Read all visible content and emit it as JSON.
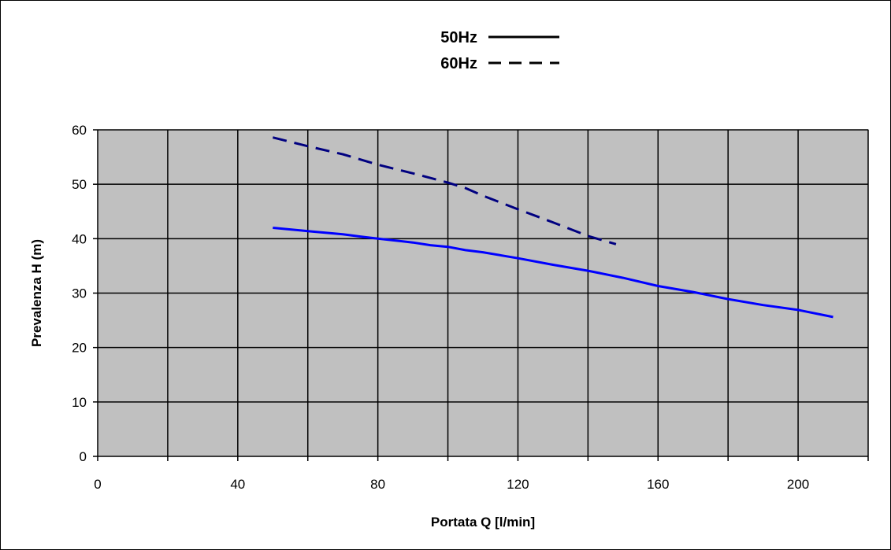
{
  "chart_data": {
    "type": "line",
    "xlabel": "Portata Q [l/min]",
    "ylabel": "Prevalenza H (m)",
    "xlim": [
      0,
      220
    ],
    "ylim": [
      0,
      60
    ],
    "x_ticks": [
      0,
      40,
      80,
      120,
      160,
      200
    ],
    "y_ticks": [
      0,
      10,
      20,
      30,
      40,
      50,
      60
    ],
    "grid": true,
    "plot_background": "#c0c0c0",
    "legend_position": "top-center",
    "series": [
      {
        "name": "50Hz",
        "style": "solid",
        "color": "#0000ff",
        "legend_color": "#000000",
        "x": [
          50,
          60,
          70,
          75,
          80,
          90,
          95,
          100,
          105,
          110,
          120,
          130,
          140,
          150,
          160,
          170,
          180,
          190,
          200,
          210
        ],
        "y": [
          42,
          41.4,
          40.8,
          40.4,
          40,
          39.3,
          38.8,
          38.5,
          37.9,
          37.5,
          36.4,
          35.2,
          34.1,
          32.8,
          31.3,
          30.2,
          28.9,
          27.8,
          26.9,
          25.6
        ]
      },
      {
        "name": "60Hz",
        "style": "dashed",
        "color": "#000080",
        "legend_color": "#000000",
        "x": [
          50,
          60,
          70,
          80,
          90,
          100,
          105,
          110,
          120,
          130,
          140,
          148
        ],
        "y": [
          58.6,
          57,
          55.5,
          53.6,
          52,
          50.3,
          49.3,
          47.9,
          45.4,
          43,
          40.5,
          39
        ]
      }
    ]
  }
}
